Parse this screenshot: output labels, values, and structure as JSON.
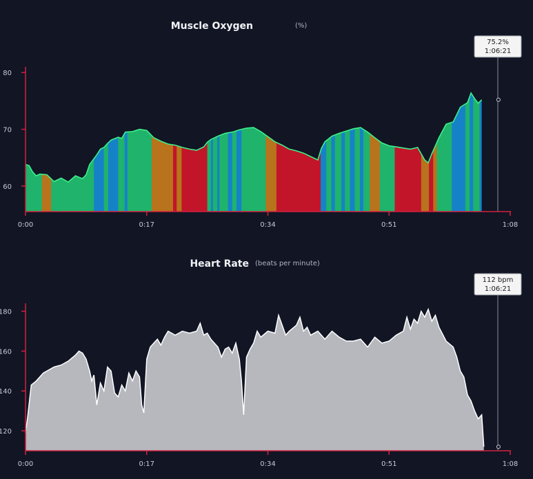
{
  "chart_data": [
    {
      "type": "area",
      "title": "Muscle Oxygen",
      "unit": "(%)",
      "xlim": [
        0,
        68
      ],
      "ylim": [
        55.5,
        81
      ],
      "x_ticks": [
        "0:00",
        "0:17",
        "0:34",
        "0:51",
        "1:08"
      ],
      "x_tick_values": [
        0,
        17,
        34,
        51,
        68
      ],
      "y_ticks": [
        60,
        70,
        80
      ],
      "colors": {
        "axis": "#d4213f",
        "line": "#3ef08a",
        "cursor": "#8a8f99",
        "green": "#1fb36b",
        "orange": "#b8731c",
        "red": "#c21529",
        "blue": "#1582c8"
      },
      "series": [
        {
          "x": [
            0,
            0.5,
            1,
            1.5,
            2,
            3,
            4,
            5,
            6,
            7,
            8,
            8.5,
            9,
            10,
            10.5,
            11,
            11.5,
            12,
            13,
            13.5,
            14,
            15,
            16,
            17,
            18,
            19,
            20,
            21,
            22,
            23,
            24,
            25,
            25.5,
            26,
            27,
            28,
            29,
            30,
            31,
            32,
            33,
            34,
            35,
            36,
            37,
            38,
            39,
            40,
            41,
            41.5,
            42,
            43,
            44,
            45,
            46,
            47,
            48,
            49,
            50,
            51,
            52,
            53,
            54,
            55,
            56,
            56.5,
            57,
            58,
            59,
            60,
            61,
            62,
            62.5,
            63,
            63.5,
            64
          ],
          "y": [
            63.8,
            63.6,
            62.5,
            61.8,
            62.1,
            62,
            60.8,
            61.4,
            60.7,
            61.8,
            61.3,
            62,
            63.8,
            65.5,
            66.5,
            66.8,
            67.5,
            68.1,
            68.6,
            68.4,
            69.5,
            69.6,
            70.0,
            69.8,
            68.5,
            67.9,
            67.4,
            67.2,
            66.8,
            66.5,
            66.3,
            66.9,
            67.7,
            68.2,
            68.8,
            69.3,
            69.5,
            69.9,
            70.2,
            70.3,
            69.6,
            68.7,
            67.8,
            67.2,
            66.5,
            66.2,
            65.8,
            65.2,
            64.6,
            66.6,
            67.8,
            68.8,
            69.3,
            69.7,
            70.1,
            70.3,
            69.5,
            68.5,
            67.6,
            67.1,
            66.9,
            66.7,
            66.5,
            66.8,
            64.6,
            64.1,
            65.7,
            68.5,
            70.9,
            71.3,
            73.9,
            74.7,
            76.4,
            75.4,
            74.6,
            75.2
          ]
        }
      ],
      "segments": [
        {
          "to": 2.3,
          "color": "green"
        },
        {
          "to": 3.6,
          "color": "orange"
        },
        {
          "to": 9.6,
          "color": "green"
        },
        {
          "to": 11,
          "color": "blue"
        },
        {
          "to": 11.6,
          "color": "green"
        },
        {
          "to": 13,
          "color": "blue"
        },
        {
          "to": 13.9,
          "color": "green"
        },
        {
          "to": 14.3,
          "color": "blue"
        },
        {
          "to": 17.7,
          "color": "green"
        },
        {
          "to": 20.7,
          "color": "orange"
        },
        {
          "to": 21.2,
          "color": "red"
        },
        {
          "to": 21.9,
          "color": "orange"
        },
        {
          "to": 25.5,
          "color": "red"
        },
        {
          "to": 26,
          "color": "green"
        },
        {
          "to": 26.3,
          "color": "blue"
        },
        {
          "to": 26.9,
          "color": "green"
        },
        {
          "to": 27.2,
          "color": "blue"
        },
        {
          "to": 28.4,
          "color": "green"
        },
        {
          "to": 29,
          "color": "blue"
        },
        {
          "to": 29.6,
          "color": "green"
        },
        {
          "to": 30.3,
          "color": "blue"
        },
        {
          "to": 33.7,
          "color": "green"
        },
        {
          "to": 35.2,
          "color": "orange"
        },
        {
          "to": 41.4,
          "color": "red"
        },
        {
          "to": 42.2,
          "color": "blue"
        },
        {
          "to": 42.9,
          "color": "green"
        },
        {
          "to": 43.4,
          "color": "blue"
        },
        {
          "to": 44.3,
          "color": "green"
        },
        {
          "to": 44.8,
          "color": "blue"
        },
        {
          "to": 45.5,
          "color": "green"
        },
        {
          "to": 46.2,
          "color": "blue"
        },
        {
          "to": 46.9,
          "color": "green"
        },
        {
          "to": 47.4,
          "color": "blue"
        },
        {
          "to": 48.3,
          "color": "green"
        },
        {
          "to": 49.7,
          "color": "orange"
        },
        {
          "to": 51.8,
          "color": "green"
        },
        {
          "to": 55.5,
          "color": "red"
        },
        {
          "to": 56.6,
          "color": "orange"
        },
        {
          "to": 57.2,
          "color": "red"
        },
        {
          "to": 57.7,
          "color": "orange"
        },
        {
          "to": 59.8,
          "color": "green"
        },
        {
          "to": 61.7,
          "color": "blue"
        },
        {
          "to": 62.3,
          "color": "green"
        },
        {
          "to": 62.8,
          "color": "blue"
        },
        {
          "to": 63.7,
          "color": "green"
        },
        {
          "to": 64,
          "color": "blue"
        }
      ],
      "cursor": {
        "x": 66.35,
        "value": 75.2,
        "label_value": "75.2%",
        "label_time": "1:06:21"
      }
    },
    {
      "type": "area",
      "title": "Heart Rate",
      "unit": "(beats per minute)",
      "xlim": [
        0,
        68
      ],
      "ylim": [
        110,
        184
      ],
      "x_ticks": [
        "0:00",
        "0:17",
        "0:34",
        "0:51",
        "1:08"
      ],
      "x_tick_values": [
        0,
        17,
        34,
        51,
        68
      ],
      "y_ticks": [
        120,
        140,
        160,
        180
      ],
      "colors": {
        "axis": "#d4213f",
        "fill": "#b6b8bd",
        "line": "#ffffff",
        "cursor": "#8a8f99"
      },
      "series": [
        {
          "x": [
            0,
            0.3,
            0.8,
            1.5,
            2.5,
            4,
            5,
            6,
            7,
            7.5,
            8,
            8.5,
            9,
            9.3,
            9.6,
            10,
            10.5,
            11,
            11.5,
            12,
            12.5,
            13,
            13.5,
            14,
            14.5,
            15,
            15.5,
            16,
            16.3,
            16.6,
            17,
            17.5,
            18,
            18.5,
            19,
            19.5,
            20,
            21,
            22,
            23,
            24,
            24.5,
            25,
            25.5,
            26,
            27,
            27.5,
            28,
            28.5,
            29,
            29.5,
            30,
            30.3,
            30.6,
            31,
            31.5,
            32,
            32.5,
            33,
            34,
            35,
            35.5,
            36,
            36.5,
            37,
            38,
            38.5,
            39,
            39.5,
            40,
            41,
            42,
            43,
            44,
            45,
            46,
            47,
            48,
            49,
            50,
            51,
            52,
            53,
            53.5,
            54,
            54.5,
            55,
            55.5,
            56,
            56.5,
            57,
            57.5,
            58,
            59,
            60,
            60.5,
            61,
            61.5,
            62,
            62.5,
            63,
            63.5,
            64,
            64.3
          ],
          "y": [
            119,
            127,
            143,
            145,
            149,
            152,
            153,
            155,
            158,
            160,
            159,
            156,
            150,
            145,
            148,
            133,
            144,
            140,
            152,
            150,
            139,
            137,
            143,
            140,
            149,
            145,
            150,
            147,
            133,
            129,
            156,
            162,
            164,
            166,
            163,
            167,
            170,
            168,
            170,
            169,
            170,
            174,
            168,
            169,
            166,
            162,
            157,
            161,
            162,
            159,
            164,
            156,
            145,
            128,
            157,
            161,
            164,
            170,
            167,
            170,
            169,
            178,
            173,
            168,
            170,
            173,
            177,
            170,
            172,
            168,
            170,
            166,
            170,
            167,
            165,
            165,
            166,
            162,
            167,
            164,
            165,
            168,
            170,
            177,
            171,
            176,
            174,
            180,
            177,
            181,
            175,
            178,
            172,
            165,
            162,
            157,
            150,
            147,
            138,
            135,
            130,
            126,
            128,
            112
          ]
        }
      ],
      "cursor": {
        "x": 66.35,
        "value": 112,
        "label_value": "112 bpm",
        "label_time": "1:06:21"
      }
    }
  ]
}
